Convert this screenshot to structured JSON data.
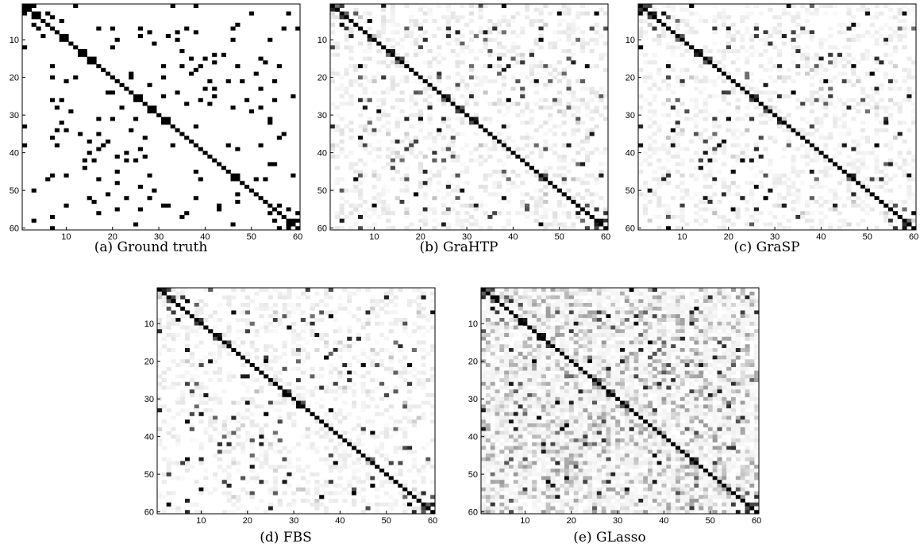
{
  "colors": {
    "on": "#000000",
    "off": "#ffffff",
    "frame": "#000000"
  },
  "chart_data": [
    {
      "type": "heatmap",
      "id": "a",
      "caption": "(a) Ground truth",
      "size": 60,
      "xticks": [
        10,
        20,
        30,
        40,
        50,
        60
      ],
      "yticks": [
        10,
        20,
        30,
        40,
        50,
        60
      ],
      "tick_labels": [
        "10",
        "20",
        "30",
        "40",
        "50",
        "60"
      ],
      "xlim": [
        0.5,
        60.5
      ],
      "ylim": [
        0.5,
        60.5
      ],
      "colormap": "gray-reversed",
      "noise": 0.0,
      "detect": 1.0
    },
    {
      "type": "heatmap",
      "id": "b",
      "caption": "(b) GraHTP",
      "size": 60,
      "xticks": [
        10,
        20,
        30,
        40,
        50,
        60
      ],
      "yticks": [
        10,
        20,
        30,
        40,
        50,
        60
      ],
      "tick_labels": [
        "10",
        "20",
        "30",
        "40",
        "50",
        "60"
      ],
      "xlim": [
        0.5,
        60.5
      ],
      "ylim": [
        0.5,
        60.5
      ],
      "colormap": "gray-reversed",
      "noise": 0.12,
      "detect": 0.85
    },
    {
      "type": "heatmap",
      "id": "c",
      "caption": "(c) GraSP",
      "size": 60,
      "xticks": [
        10,
        20,
        30,
        40,
        50,
        60
      ],
      "yticks": [
        10,
        20,
        30,
        40,
        50,
        60
      ],
      "tick_labels": [
        "10",
        "20",
        "30",
        "40",
        "50",
        "60"
      ],
      "xlim": [
        0.5,
        60.5
      ],
      "ylim": [
        0.5,
        60.5
      ],
      "colormap": "gray-reversed",
      "noise": 0.1,
      "detect": 0.85
    },
    {
      "type": "heatmap",
      "id": "d",
      "caption": "(d) FBS",
      "size": 60,
      "xticks": [
        10,
        20,
        30,
        40,
        50,
        60
      ],
      "yticks": [
        10,
        20,
        30,
        40,
        50,
        60
      ],
      "tick_labels": [
        "10",
        "20",
        "30",
        "40",
        "50",
        "60"
      ],
      "xlim": [
        0.5,
        60.5
      ],
      "ylim": [
        0.5,
        60.5
      ],
      "colormap": "gray-reversed",
      "noise": 0.1,
      "detect": 0.85
    },
    {
      "type": "heatmap",
      "id": "e",
      "caption": "(e) GLasso",
      "size": 60,
      "xticks": [
        10,
        20,
        30,
        40,
        50,
        60
      ],
      "yticks": [
        10,
        20,
        30,
        40,
        50,
        60
      ],
      "tick_labels": [
        "10",
        "20",
        "30",
        "40",
        "50",
        "60"
      ],
      "xlim": [
        0.5,
        60.5
      ],
      "ylim": [
        0.5,
        60.5
      ],
      "colormap": "gray-reversed",
      "noise": 0.4,
      "detect": 0.9
    }
  ]
}
